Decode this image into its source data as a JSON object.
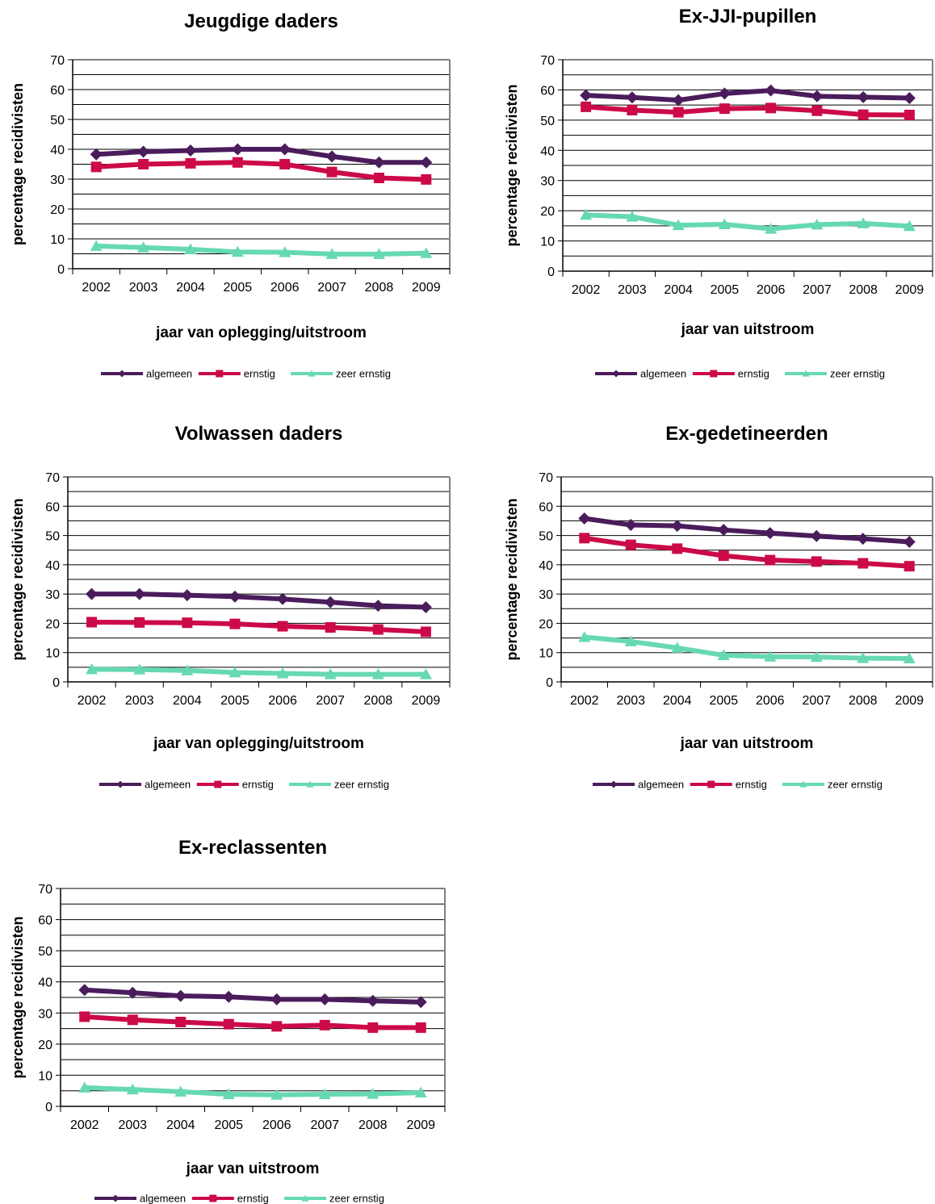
{
  "chart_data": [
    {
      "type": "line",
      "title": "Jeugdige  daders",
      "xlabel": "jaar van oplegging/uitstroom",
      "ylabel": "percentage recidivisten",
      "ylim": [
        0,
        70
      ],
      "yticks": [
        "0",
        "10",
        "20",
        "30",
        "40",
        "50",
        "60",
        "70"
      ],
      "categories": [
        "2002",
        "2003",
        "2004",
        "2005",
        "2006",
        "2007",
        "2008",
        "2009"
      ],
      "grid": true,
      "legend": "bottom",
      "series": [
        {
          "name": "algemeen",
          "color": "#4b1c5c",
          "marker": "diamond",
          "values": [
            38.3,
            39.2,
            39.6,
            40.0,
            40.0,
            37.6,
            35.6,
            35.6
          ]
        },
        {
          "name": "ernstig",
          "color": "#cc0a48",
          "marker": "square",
          "values": [
            34.1,
            35.0,
            35.3,
            35.6,
            35.0,
            32.4,
            30.4,
            29.9
          ]
        },
        {
          "name": "zeer ernstig",
          "color": "#66d9b0",
          "marker": "triangle",
          "values": [
            7.6,
            7.1,
            6.5,
            5.6,
            5.5,
            4.9,
            4.9,
            5.2
          ]
        }
      ]
    },
    {
      "type": "line",
      "title": "Ex-JJI-pupillen",
      "xlabel": "jaar van uitstroom",
      "ylabel": "percentage recidivisten",
      "ylim": [
        0,
        70
      ],
      "yticks": [
        "0",
        "10",
        "20",
        "30",
        "40",
        "50",
        "60",
        "70"
      ],
      "categories": [
        "2002",
        "2003",
        "2004",
        "2005",
        "2006",
        "2007",
        "2008",
        "2009"
      ],
      "grid": true,
      "legend": "bottom",
      "series": [
        {
          "name": "algemeen",
          "color": "#4b1c5c",
          "marker": "diamond",
          "values": [
            58.2,
            57.5,
            56.6,
            58.8,
            59.8,
            57.9,
            57.6,
            57.3
          ]
        },
        {
          "name": "ernstig",
          "color": "#cc0a48",
          "marker": "square",
          "values": [
            54.4,
            53.3,
            52.6,
            53.8,
            54.0,
            53.1,
            51.8,
            51.7
          ]
        },
        {
          "name": "zeer ernstig",
          "color": "#66d9b0",
          "marker": "triangle",
          "values": [
            18.6,
            18.0,
            15.2,
            15.5,
            14.0,
            15.4,
            15.8,
            14.9
          ]
        }
      ]
    },
    {
      "type": "line",
      "title": "Volwassen  daders",
      "xlabel": "jaar van oplegging/uitstroom",
      "ylabel": "percentage recidivisten",
      "ylim": [
        0,
        70
      ],
      "yticks": [
        "0",
        "10",
        "20",
        "30",
        "40",
        "50",
        "60",
        "70"
      ],
      "categories": [
        "2002",
        "2003",
        "2004",
        "2005",
        "2006",
        "2007",
        "2008",
        "2009"
      ],
      "grid": true,
      "legend": "bottom",
      "series": [
        {
          "name": "algemeen",
          "color": "#4b1c5c",
          "marker": "diamond",
          "values": [
            30.0,
            30.0,
            29.6,
            29.1,
            28.3,
            27.2,
            26.0,
            25.5
          ]
        },
        {
          "name": "ernstig",
          "color": "#cc0a48",
          "marker": "square",
          "values": [
            20.4,
            20.3,
            20.2,
            19.8,
            19.0,
            18.6,
            17.9,
            17.1
          ]
        },
        {
          "name": "zeer ernstig",
          "color": "#66d9b0",
          "marker": "triangle",
          "values": [
            4.3,
            4.2,
            3.9,
            3.2,
            2.9,
            2.6,
            2.6,
            2.6
          ]
        }
      ]
    },
    {
      "type": "line",
      "title": "Ex-gedetineerden",
      "xlabel": "jaar van uitstroom",
      "ylabel": "percentage recidivisten",
      "ylim": [
        0,
        70
      ],
      "yticks": [
        "0",
        "10",
        "20",
        "30",
        "40",
        "50",
        "60",
        "70"
      ],
      "categories": [
        "2002",
        "2003",
        "2004",
        "2005",
        "2006",
        "2007",
        "2008",
        "2009"
      ],
      "grid": true,
      "legend": "bottom",
      "series": [
        {
          "name": "algemeen",
          "color": "#4b1c5c",
          "marker": "diamond",
          "values": [
            55.8,
            53.6,
            53.3,
            51.9,
            50.8,
            49.8,
            48.9,
            47.8
          ]
        },
        {
          "name": "ernstig",
          "color": "#cc0a48",
          "marker": "square",
          "values": [
            49.1,
            46.8,
            45.5,
            43.1,
            41.6,
            41.1,
            40.5,
            39.5
          ]
        },
        {
          "name": "zeer ernstig",
          "color": "#66d9b0",
          "marker": "triangle",
          "values": [
            15.3,
            13.8,
            11.6,
            9.1,
            8.6,
            8.5,
            8.1,
            8.0
          ]
        }
      ]
    },
    {
      "type": "line",
      "title": "Ex-reclassenten",
      "xlabel": "jaar van uitstroom",
      "ylabel": "percentage recidivisten",
      "ylim": [
        0,
        70
      ],
      "yticks": [
        "0",
        "10",
        "20",
        "30",
        "40",
        "50",
        "60",
        "70"
      ],
      "categories": [
        "2002",
        "2003",
        "2004",
        "2005",
        "2006",
        "2007",
        "2008",
        "2009"
      ],
      "grid": true,
      "legend": "bottom",
      "series": [
        {
          "name": "algemeen",
          "color": "#4b1c5c",
          "marker": "diamond",
          "values": [
            37.4,
            36.5,
            35.5,
            35.2,
            34.4,
            34.4,
            33.9,
            33.5
          ]
        },
        {
          "name": "ernstig",
          "color": "#cc0a48",
          "marker": "square",
          "values": [
            28.8,
            27.8,
            27.1,
            26.4,
            25.7,
            26.1,
            25.3,
            25.3
          ]
        },
        {
          "name": "zeer ernstig",
          "color": "#66d9b0",
          "marker": "triangle",
          "values": [
            6.0,
            5.4,
            4.7,
            3.9,
            3.7,
            3.9,
            4.0,
            4.4
          ]
        }
      ]
    }
  ]
}
